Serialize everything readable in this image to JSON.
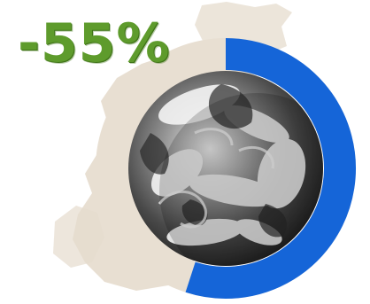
{
  "headline": {
    "text": "-55%"
  },
  "graphic": {
    "ring_fill_fraction": 0.55,
    "colors": {
      "headline": "#5e9b2c",
      "ring_fill": "#1565d8",
      "ring_track": "#e8dfd2",
      "paper_texture": "#e5dccd",
      "globe_light": "#eeeeee",
      "globe_dark": "#1e1e1e"
    }
  }
}
